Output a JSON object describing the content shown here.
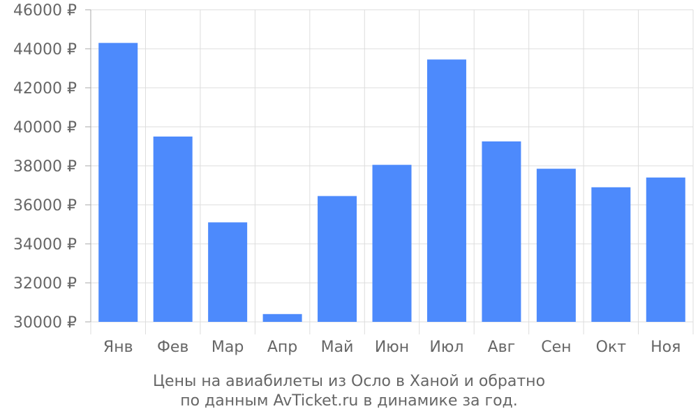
{
  "chart_data": {
    "type": "bar",
    "categories": [
      "Янв",
      "Фев",
      "Мар",
      "Апр",
      "Май",
      "Июн",
      "Июл",
      "Авг",
      "Сен",
      "Окт",
      "Ноя"
    ],
    "values": [
      44300,
      39500,
      35100,
      30400,
      36450,
      38050,
      43450,
      39250,
      37850,
      36900,
      37400
    ],
    "ylim": [
      30000,
      46000
    ],
    "yticks": [
      30000,
      32000,
      34000,
      36000,
      38000,
      40000,
      42000,
      44000,
      46000
    ],
    "ytick_labels": [
      "30000 ₽",
      "32000 ₽",
      "34000 ₽",
      "36000 ₽",
      "38000 ₽",
      "40000 ₽",
      "42000 ₽",
      "44000 ₽",
      "46000 ₽"
    ],
    "grid": true,
    "bar_color": "#4d8afc",
    "title_lines": [
      "Цены на авиабилеты из Осло в Ханой и обратно",
      "по данным AvTicket.ru в динамике за год."
    ]
  }
}
